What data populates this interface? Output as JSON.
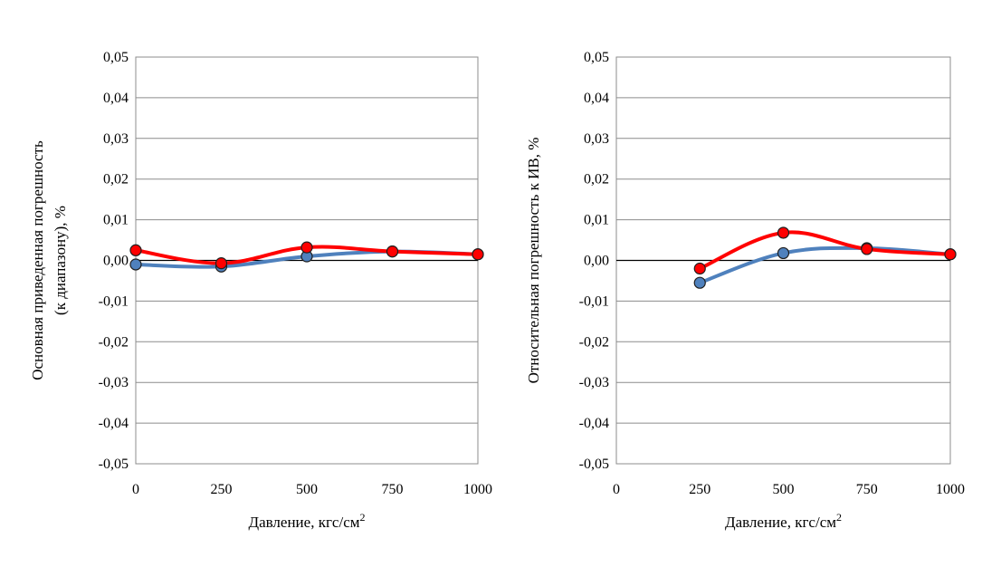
{
  "chart_data": [
    {
      "type": "line",
      "xlabel": "Давление, кгс/см",
      "xlabel_sup": "2",
      "ylabel_lines": [
        "Основная приведенная погрешность",
        "(к диапазону), %"
      ],
      "xlim": [
        0,
        1000
      ],
      "ylim": [
        -0.05,
        0.05
      ],
      "x_ticks": [
        "0",
        "250",
        "500",
        "750",
        "1000"
      ],
      "y_ticks": [
        "0,05",
        "0,04",
        "0,03",
        "0,02",
        "0,01",
        "0,00",
        "-0,01",
        "-0,02",
        "-0,03",
        "-0,04",
        "-0,05"
      ],
      "grid": true,
      "series": [
        {
          "color": "#4f81bd",
          "marker_fill": "#4f81bd",
          "x": [
            0,
            250,
            500,
            750,
            1000
          ],
          "y": [
            -0.001,
            -0.0015,
            0.001,
            0.0022,
            0.0015
          ]
        },
        {
          "color": "#ff0000",
          "marker_fill": "#ff0000",
          "x": [
            0,
            250,
            500,
            750,
            1000
          ],
          "y": [
            0.0025,
            -0.0007,
            0.0032,
            0.0022,
            0.0015
          ]
        }
      ]
    },
    {
      "type": "line",
      "xlabel": "Давление, кгс/см",
      "xlabel_sup": "2",
      "ylabel_lines": [
        "Относительная погрешность к ИВ, %"
      ],
      "xlim": [
        0,
        1000
      ],
      "ylim": [
        -0.05,
        0.05
      ],
      "x_ticks": [
        "0",
        "250",
        "500",
        "750",
        "1000"
      ],
      "y_ticks": [
        "0,05",
        "0,04",
        "0,03",
        "0,02",
        "0,01",
        "0,00",
        "-0,01",
        "-0,02",
        "-0,03",
        "-0,04",
        "-0,05"
      ],
      "grid": true,
      "series": [
        {
          "color": "#4f81bd",
          "marker_fill": "#4f81bd",
          "x": [
            250,
            500,
            750,
            1000
          ],
          "y": [
            -0.0055,
            0.0018,
            0.003,
            0.0015
          ]
        },
        {
          "color": "#ff0000",
          "marker_fill": "#ff0000",
          "x": [
            250,
            500,
            750,
            1000
          ],
          "y": [
            -0.002,
            0.0068,
            0.0028,
            0.0015
          ]
        }
      ]
    }
  ]
}
